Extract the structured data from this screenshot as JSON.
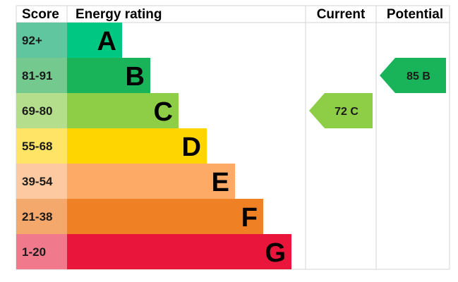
{
  "chart_data": {
    "type": "table",
    "headers": {
      "score": "Score",
      "rating": "Energy rating",
      "current": "Current",
      "potential": "Potential"
    },
    "bands": [
      {
        "score": "92+",
        "letter": "A",
        "color": "#00c781",
        "score_color": "#5fc6a0"
      },
      {
        "score": "81-91",
        "letter": "B",
        "color": "#19b459",
        "score_color": "#74c98f"
      },
      {
        "score": "69-80",
        "letter": "C",
        "color": "#8dce46",
        "score_color": "#b5de8c"
      },
      {
        "score": "55-68",
        "letter": "D",
        "color": "#ffd500",
        "score_color": "#ffe466"
      },
      {
        "score": "39-54",
        "letter": "E",
        "color": "#fcaa65",
        "score_color": "#fdc9a0"
      },
      {
        "score": "21-38",
        "letter": "F",
        "color": "#ef8023",
        "score_color": "#f4a86b"
      },
      {
        "score": "1-20",
        "letter": "G",
        "color": "#e9153b",
        "score_color": "#f07a8c"
      }
    ],
    "current": {
      "value": 72,
      "letter": "C",
      "label": "72 C",
      "color": "#8dce46"
    },
    "potential": {
      "value": 85,
      "letter": "B",
      "label": "85 B",
      "color": "#19b459"
    }
  }
}
